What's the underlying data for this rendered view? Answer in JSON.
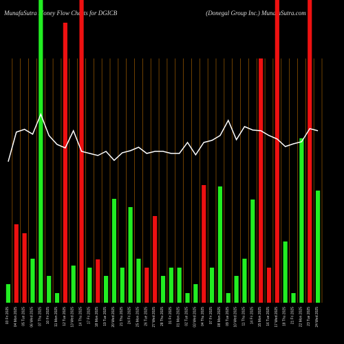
{
  "chart_data": {
    "type": "bar",
    "title": "MunafaSutra  Money Flow  Charts for DGICB",
    "subtitle": "(Donegal Group  Inc.) MunafaSutra.com",
    "categories": [
      "03 Fri 2025",
      "04 Mon 2025",
      "05 Tue 2025",
      "06 Wed 2025",
      "07 Thu 2025",
      "10 Fri 2025",
      "11 Mon 2025",
      "12 Tue 2025",
      "13 Wed 2025",
      "14 Thu 2025",
      "17 Fri 2025",
      "18 Mon 2025",
      "19 Tue 2025",
      "20 Wed 2025",
      "21 Thu 2025",
      "24 Fri 2025",
      "25 Mon 2025",
      "26 Tue 2025",
      "27 Wed 2025",
      "28 Thu 2025",
      "31 Fri 2025",
      "01 Mon 2025",
      "02 Tue 2025",
      "03 Wed 2025",
      "04 Thu 2025",
      "07 Fri 2025",
      "08 Mon 2025",
      "09 Tue 2025",
      "10 Wed 2025",
      "11 Thu 2025",
      "14 Fri 2025",
      "15 Mon 2025",
      "16 Tue 2025",
      "17 Wed 2025",
      "18 Thu 2025",
      "21 Fri 2025",
      "22 Mon 2025",
      "23 Tue 2025",
      "24 Wed 2025"
    ],
    "values": [
      27,
      114,
      101,
      64,
      440,
      39,
      14,
      407,
      54,
      440,
      51,
      63,
      39,
      151,
      51,
      139,
      64,
      51,
      126,
      39,
      51,
      51,
      14,
      27,
      171,
      51,
      169,
      14,
      39,
      64,
      150,
      355,
      51,
      440,
      89,
      14,
      239,
      440,
      163
    ],
    "colors": [
      "#22ee22",
      "#ee1111",
      "#ee1111",
      "#22ee22",
      "#22ee22",
      "#22ee22",
      "#22ee22",
      "#ee1111",
      "#22ee22",
      "#ee1111",
      "#22ee22",
      "#ee1111",
      "#22ee22",
      "#22ee22",
      "#22ee22",
      "#22ee22",
      "#22ee22",
      "#ee1111",
      "#ee1111",
      "#22ee22",
      "#22ee22",
      "#22ee22",
      "#22ee22",
      "#22ee22",
      "#ee1111",
      "#22ee22",
      "#22ee22",
      "#22ee22",
      "#22ee22",
      "#22ee22",
      "#22ee22",
      "#ee1111",
      "#ee1111",
      "#ee1111",
      "#22ee22",
      "#22ee22",
      "#22ee22",
      "#ee1111",
      "#22ee22"
    ],
    "line": {
      "color": "#ffffff",
      "values": [
        205,
        248,
        252,
        245,
        274,
        243,
        230,
        225,
        250,
        220,
        217,
        214,
        220,
        207,
        218,
        221,
        226,
        217,
        220,
        220,
        217,
        217,
        233,
        215,
        233,
        236,
        243,
        265,
        237,
        256,
        251,
        250,
        243,
        238,
        227,
        231,
        234,
        253,
        250
      ]
    },
    "ylim": [
      0,
      440
    ]
  }
}
